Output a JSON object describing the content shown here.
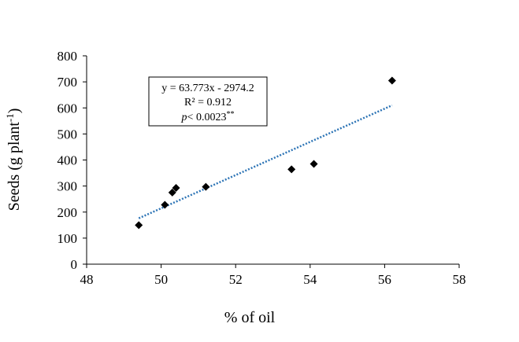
{
  "chart_data": {
    "type": "scatter",
    "title": "",
    "xlabel": "% of oil",
    "ylabel": {
      "text": "Seeds (g plant",
      "superscript": "-1",
      "suffix": ")"
    },
    "xlim": [
      48,
      58
    ],
    "ylim": [
      0,
      800
    ],
    "x_ticks": [
      48,
      50,
      52,
      54,
      56,
      58
    ],
    "y_ticks": [
      0,
      100,
      200,
      300,
      400,
      500,
      600,
      700,
      800
    ],
    "grid": false,
    "legend": "none",
    "series": [
      {
        "marker": "diamond",
        "color": "#000000",
        "points": [
          {
            "x": 49.4,
            "y": 150
          },
          {
            "x": 50.1,
            "y": 228
          },
          {
            "x": 50.3,
            "y": 275
          },
          {
            "x": 50.4,
            "y": 293
          },
          {
            "x": 51.2,
            "y": 297
          },
          {
            "x": 53.5,
            "y": 364
          },
          {
            "x": 54.1,
            "y": 385
          },
          {
            "x": 56.2,
            "y": 705
          }
        ]
      }
    ],
    "trendline": {
      "type": "linear",
      "style": "dotted",
      "color": "#2e75b6",
      "x_start": 49.4,
      "x_end": 56.2,
      "slope": 63.773,
      "intercept": -2974.2
    },
    "annotation": {
      "equation": "y = 63.773x - 2974.2",
      "r2": "R² = 0.912",
      "p_label": "p",
      "p_value": "< 0.0023",
      "p_stars": "**"
    }
  }
}
